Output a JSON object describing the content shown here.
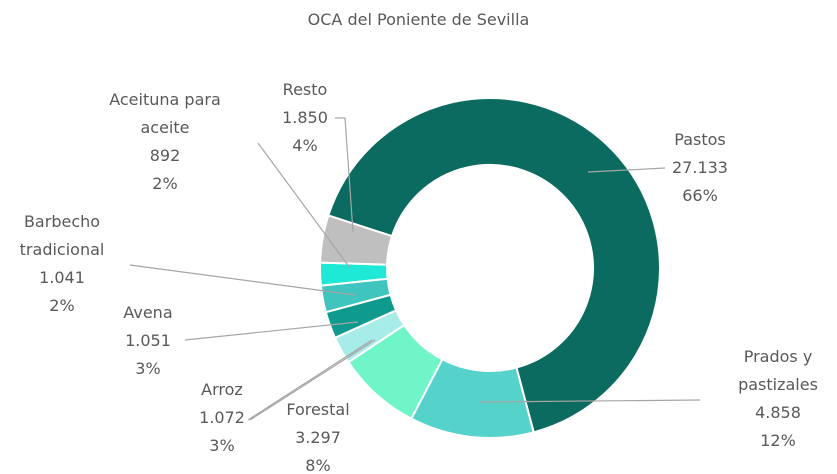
{
  "chart_data": {
    "type": "donut",
    "title": "OCA del Poniente de Sevilla",
    "categories": [
      "Pastos",
      "Prados y pastizales",
      "Forestal",
      "Arroz",
      "Avena",
      "Barbecho tradicional",
      "Aceituna para aceite",
      "Resto"
    ],
    "values": [
      27133,
      4858,
      3297,
      1072,
      1051,
      1041,
      892,
      1850
    ],
    "value_labels": [
      "27.133",
      "4.858",
      "3.297",
      "1.072",
      "1.051",
      "1.041",
      "892",
      "1.850"
    ],
    "percent_labels": [
      "66%",
      "12%",
      "8%",
      "3%",
      "3%",
      "2%",
      "2%",
      "4%"
    ],
    "colors": [
      "#0b6b60",
      "#55d3cb",
      "#6ff5c8",
      "#a8ecea",
      "#0e9a8d",
      "#40c4be",
      "#1de9d6",
      "#bfbfbf"
    ]
  }
}
